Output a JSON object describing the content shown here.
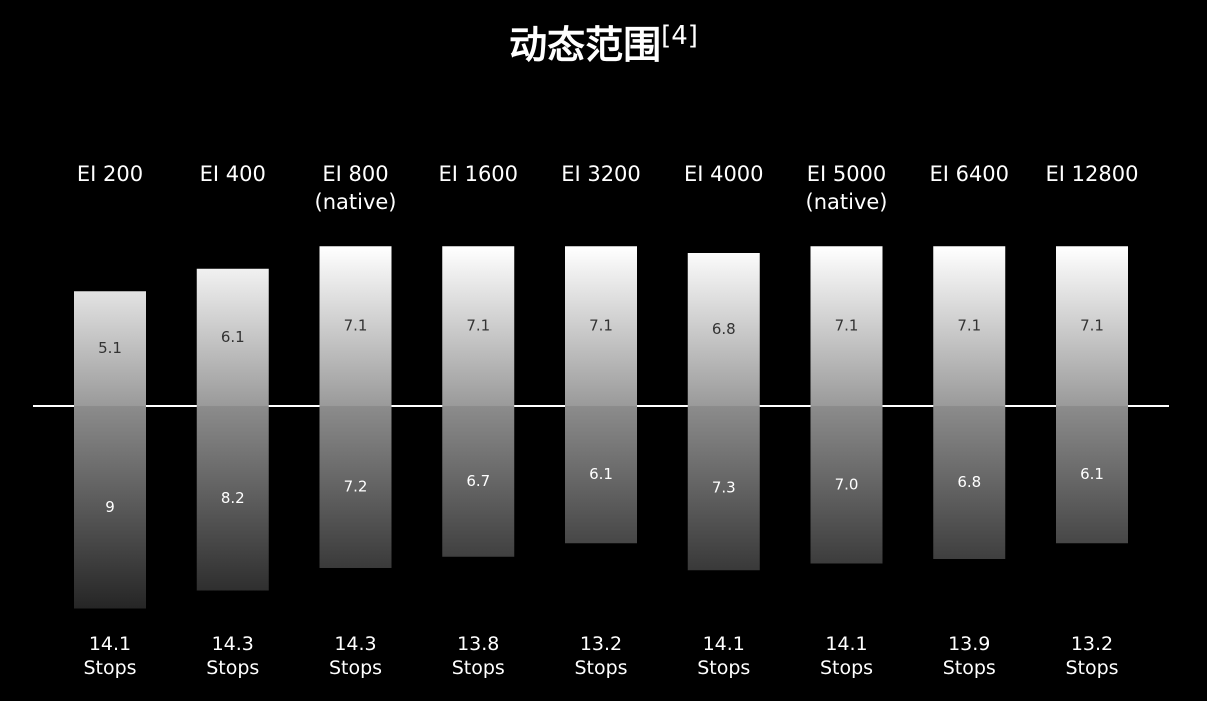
{
  "chart_data": {
    "type": "diverging-bar",
    "title": "动态范围",
    "title_ref": "[4]",
    "categories": [
      "EI 200",
      "EI 400",
      "EI 800\n(native)",
      "EI 1600",
      "EI 3200",
      "EI 4000",
      "EI 5000\n(native)",
      "EI 6400",
      "EI 12800"
    ],
    "series": [
      {
        "values": [
          5.1,
          6.1,
          7.1,
          7.1,
          7.1,
          6.8,
          7.1,
          7.1,
          7.1
        ]
      },
      {
        "values": [
          9,
          8.2,
          7.2,
          6.7,
          6.1,
          7.3,
          7.0,
          6.8,
          6.1
        ],
        "value_labels": [
          "9",
          "8.2",
          "7.2",
          "6.7",
          "6.1",
          "7.3",
          "7.0",
          "6.8",
          "6.1"
        ]
      }
    ],
    "totals": [
      14.1,
      14.3,
      14.3,
      13.8,
      13.2,
      14.1,
      14.1,
      13.9,
      13.2
    ],
    "totals_unit": "Stops"
  }
}
